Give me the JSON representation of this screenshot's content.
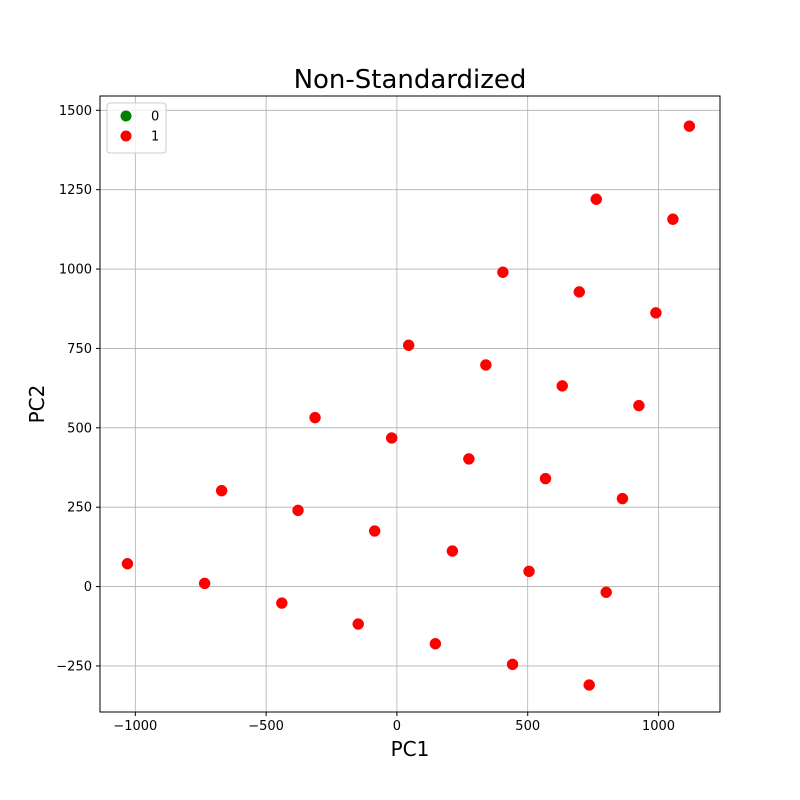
{
  "chart_data": {
    "type": "scatter",
    "title": "Non-Standardized",
    "xlabel": "PC1",
    "ylabel": "PC2",
    "xlim": [
      -1135,
      1235
    ],
    "ylim": [
      -395,
      1545
    ],
    "xticks": [
      -1000,
      -500,
      0,
      500,
      1000
    ],
    "yticks": [
      -250,
      0,
      250,
      500,
      750,
      1000,
      1250,
      1500
    ],
    "xtick_labels": [
      "−1000",
      "−500",
      "0",
      "500",
      "1000"
    ],
    "ytick_labels": [
      "−250",
      "0",
      "250",
      "500",
      "750",
      "1000",
      "1250",
      "1500"
    ],
    "grid": true,
    "legend": {
      "placement": "top-left"
    },
    "series": [
      {
        "name": "0",
        "color": "#008000",
        "points": []
      },
      {
        "name": "1",
        "color": "#ff0000",
        "points": [
          [
            -1030,
            72
          ],
          [
            -735,
            10
          ],
          [
            -670,
            302
          ],
          [
            -440,
            -52
          ],
          [
            -378,
            240
          ],
          [
            -313,
            532
          ],
          [
            -148,
            -118
          ],
          [
            -85,
            175
          ],
          [
            -20,
            468
          ],
          [
            45,
            760
          ],
          [
            147,
            -180
          ],
          [
            212,
            112
          ],
          [
            275,
            402
          ],
          [
            340,
            698
          ],
          [
            405,
            990
          ],
          [
            442,
            -245
          ],
          [
            505,
            48
          ],
          [
            568,
            340
          ],
          [
            632,
            632
          ],
          [
            697,
            928
          ],
          [
            762,
            1220
          ],
          [
            735,
            -310
          ],
          [
            800,
            -18
          ],
          [
            862,
            277
          ],
          [
            925,
            570
          ],
          [
            990,
            862
          ],
          [
            1055,
            1157
          ],
          [
            1118,
            1450
          ]
        ]
      }
    ]
  }
}
